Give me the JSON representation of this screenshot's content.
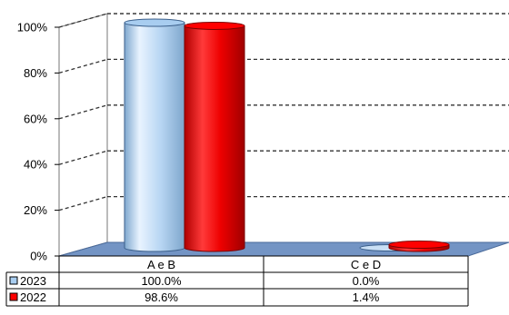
{
  "chart_data": {
    "type": "bar",
    "style": "3d-cylinder",
    "categories": [
      "A e B",
      "C e D"
    ],
    "series": [
      {
        "name": "2023",
        "values": [
          100.0,
          0.0
        ],
        "labels": [
          "100.0%",
          "0.0%"
        ],
        "color": "#a8cdf0"
      },
      {
        "name": "2022",
        "values": [
          98.6,
          1.4
        ],
        "labels": [
          "98.6%",
          "1.4%"
        ],
        "color": "#ff0000"
      }
    ],
    "ylim": [
      0,
      100
    ],
    "yticks": [
      "0%",
      "20%",
      "40%",
      "60%",
      "80%",
      "100%"
    ],
    "grid": "dashed",
    "legend": "data-table-below"
  }
}
